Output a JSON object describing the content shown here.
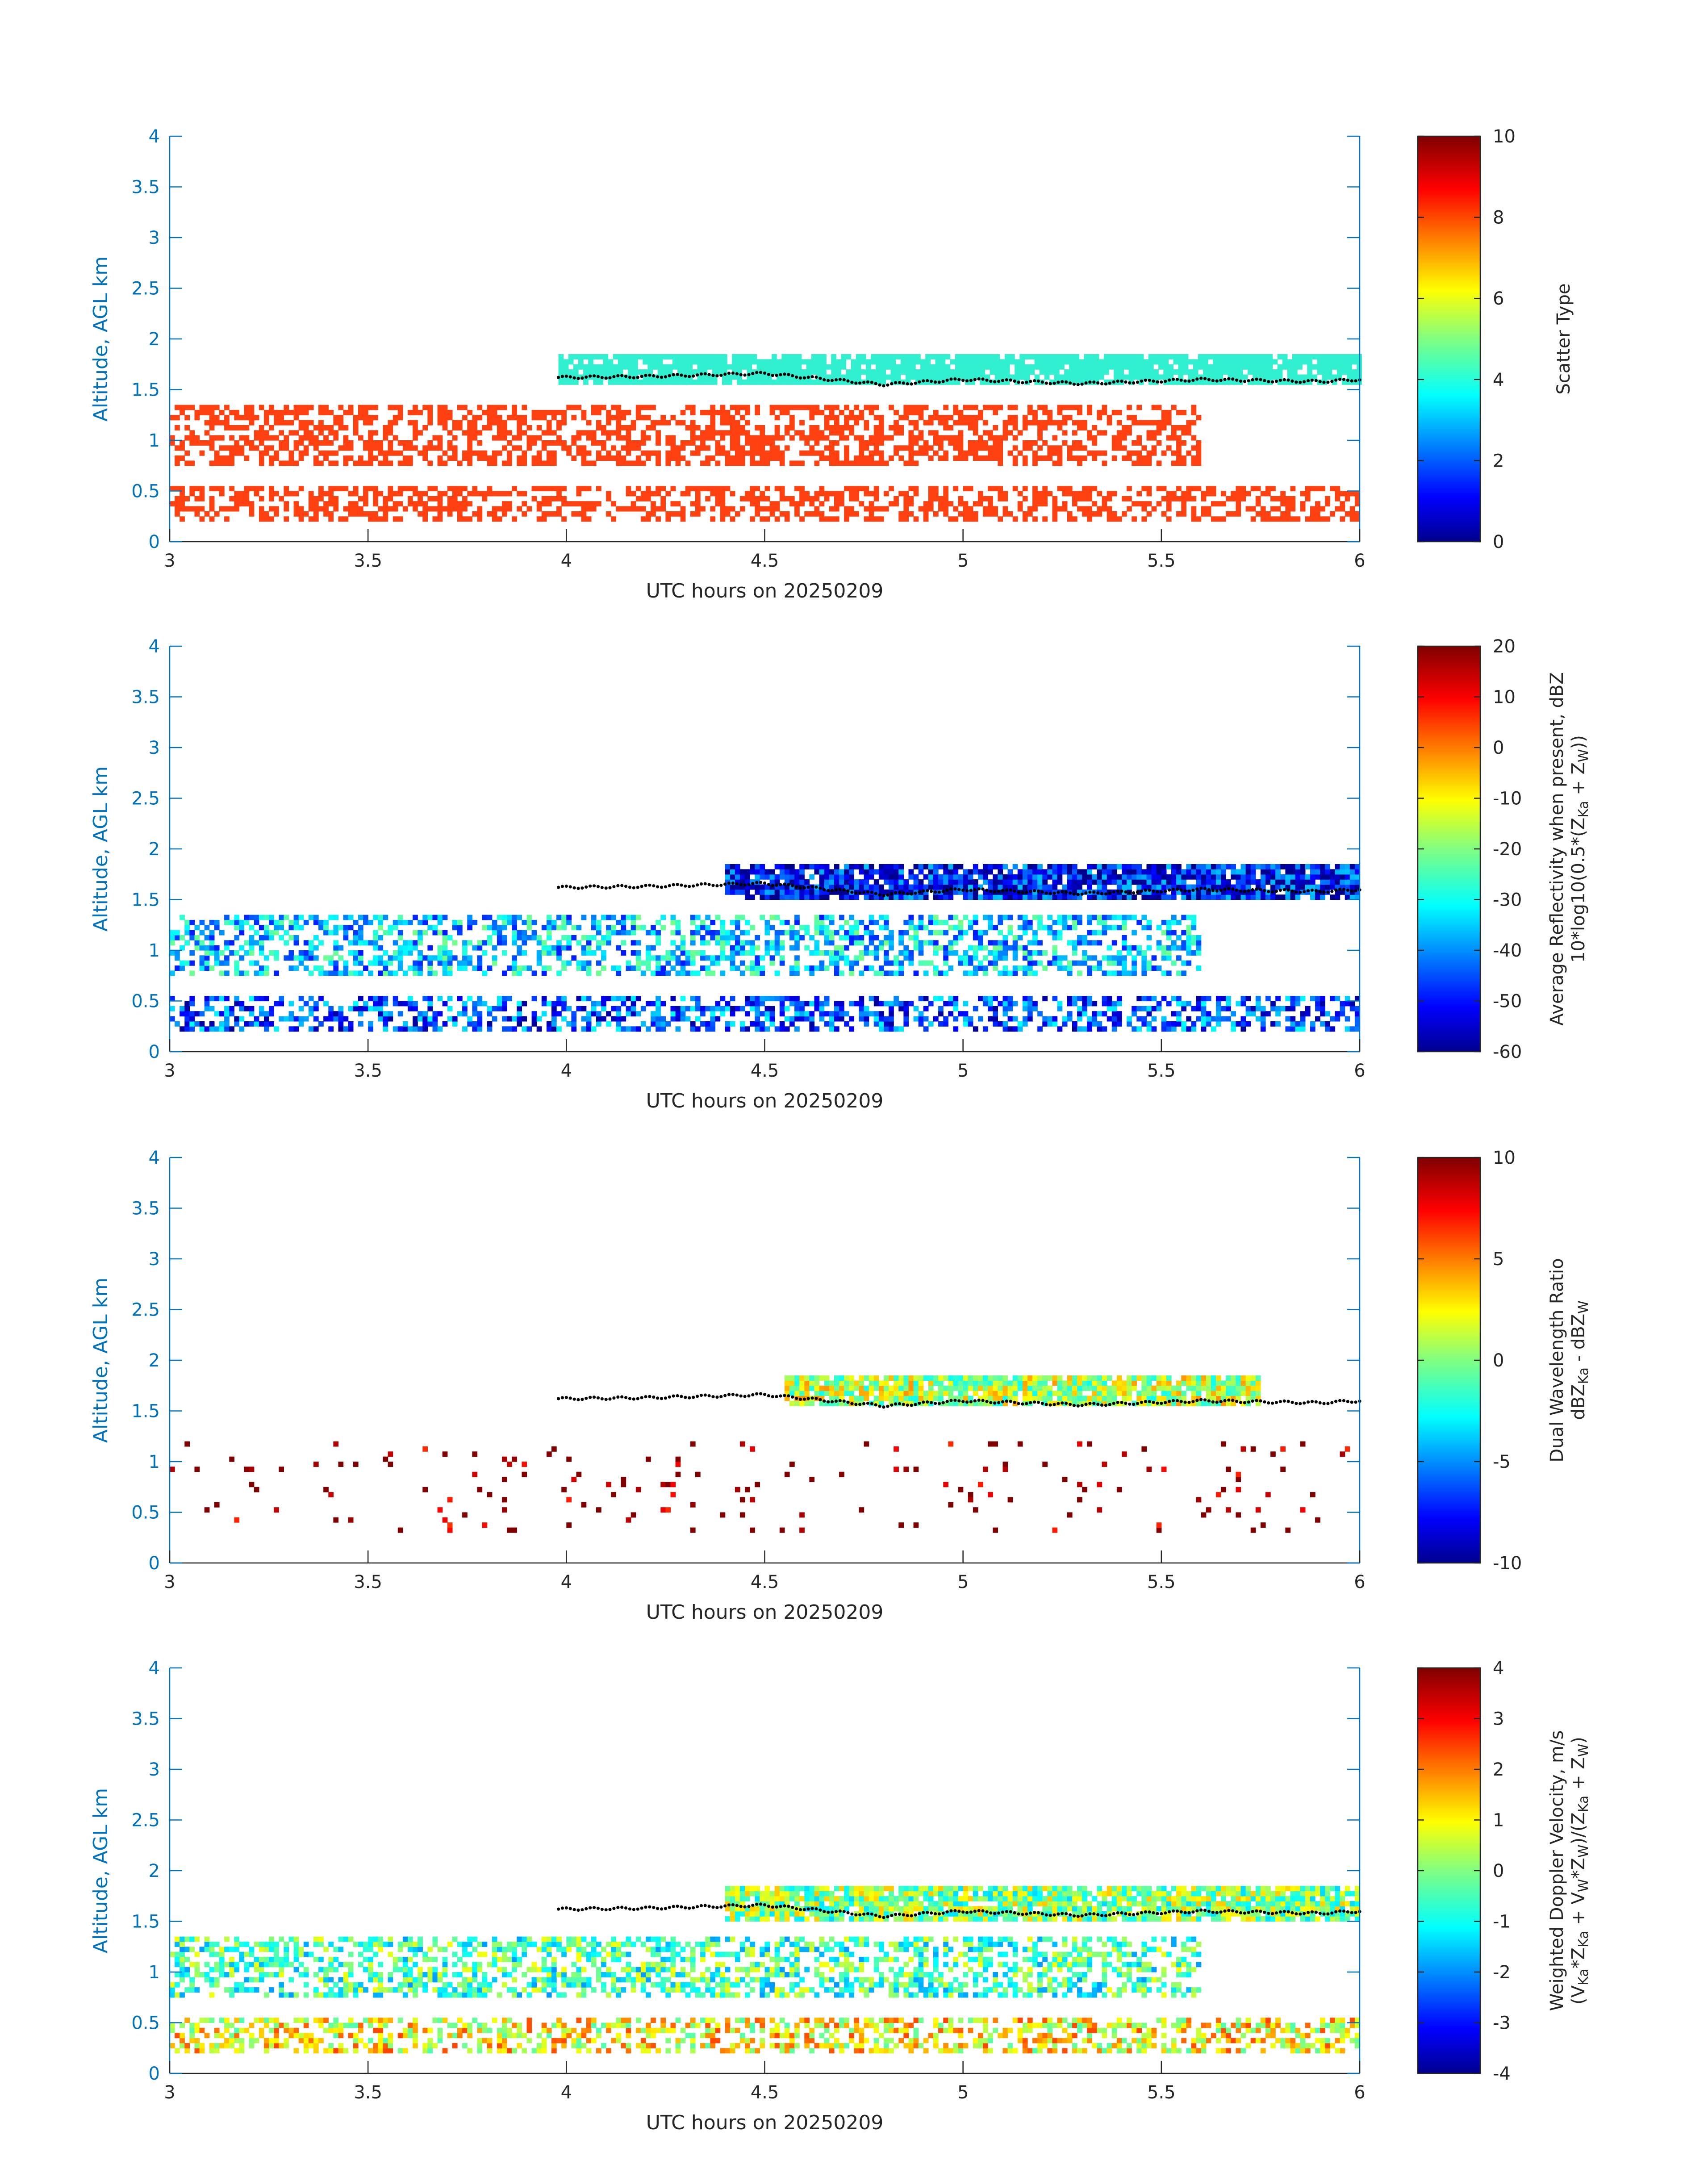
{
  "chart_data": [
    {
      "type": "heatmap",
      "panel": "scatter-type",
      "xlabel": "UTC hours on 20250209",
      "ylabel": "Altitude, AGL km",
      "xlim": [
        3,
        6
      ],
      "ylim": [
        0,
        4
      ],
      "xticks": [
        "3",
        "3.5",
        "4",
        "4.5",
        "5",
        "5.5",
        "6"
      ],
      "yticks": [
        "0",
        "0.5",
        "1",
        "1.5",
        "2",
        "2.5",
        "3",
        "3.5",
        "4"
      ],
      "colorbar": {
        "label": [
          "Scatter Type"
        ],
        "clim": [
          0,
          10
        ],
        "ticks": [
          "0",
          "2",
          "4",
          "6",
          "8",
          "10"
        ]
      },
      "layers": [
        {
          "value": 8,
          "color": "#ff4010",
          "description": "low layer echoes",
          "x": [
            3.0,
            6.0
          ],
          "y": [
            0.2,
            0.55
          ]
        },
        {
          "value": 8,
          "color": "#ff4010",
          "description": "mid-level echoes",
          "x": [
            3.0,
            5.6
          ],
          "y": [
            0.75,
            1.35
          ]
        },
        {
          "value": 4,
          "color": "#30f0d0",
          "description": "upper cloud layer",
          "x": [
            3.98,
            6.0
          ],
          "y": [
            1.55,
            1.85
          ]
        }
      ],
      "cloud_top_dots": {
        "x": [
          3.98,
          4.2,
          4.5,
          4.8,
          5.0,
          5.3,
          5.6,
          5.9,
          6.0
        ],
        "y": [
          1.62,
          1.63,
          1.66,
          1.55,
          1.6,
          1.56,
          1.6,
          1.58,
          1.6
        ]
      }
    },
    {
      "type": "heatmap",
      "panel": "reflectivity",
      "xlabel": "UTC hours on 20250209",
      "ylabel": "Altitude, AGL km",
      "xlim": [
        3,
        6
      ],
      "ylim": [
        0,
        4
      ],
      "xticks": [
        "3",
        "3.5",
        "4",
        "4.5",
        "5",
        "5.5",
        "6"
      ],
      "yticks": [
        "0",
        "0.5",
        "1",
        "1.5",
        "2",
        "2.5",
        "3",
        "3.5",
        "4"
      ],
      "colorbar": {
        "label": [
          "Average Reflectivity when present, dBZ",
          "10*log10(0.5*(Z",
          "Ka",
          " + Z",
          "W",
          "))"
        ],
        "clim": [
          -60,
          20
        ],
        "ticks": [
          "-60",
          "-50",
          "-40",
          "-30",
          "-20",
          "-10",
          "0",
          "10",
          "20"
        ]
      },
      "layers": [
        {
          "value": -45,
          "description": "low layer echoes",
          "x": [
            3.0,
            6.0
          ],
          "y": [
            0.2,
            0.55
          ]
        },
        {
          "value": -35,
          "description": "mid-level echoes",
          "x": [
            3.0,
            5.6
          ],
          "y": [
            0.75,
            1.35
          ]
        },
        {
          "value": -50,
          "description": "upper cloud layer",
          "x": [
            4.4,
            6.0
          ],
          "y": [
            1.5,
            1.85
          ]
        }
      ]
    },
    {
      "type": "heatmap",
      "panel": "dual-wavelength-ratio",
      "xlabel": "UTC hours on 20250209",
      "ylabel": "Altitude, AGL km",
      "xlim": [
        3,
        6
      ],
      "ylim": [
        0,
        4
      ],
      "xticks": [
        "3",
        "3.5",
        "4",
        "4.5",
        "5",
        "5.5",
        "6"
      ],
      "yticks": [
        "0",
        "0.5",
        "1",
        "1.5",
        "2",
        "2.5",
        "3",
        "3.5",
        "4"
      ],
      "colorbar": {
        "label": [
          "Dual Wavelength Ratio",
          "dBZ",
          "Ka",
          " - dBZ",
          "W"
        ],
        "clim": [
          -10,
          10
        ],
        "ticks": [
          "-10",
          "-5",
          "0",
          "5",
          "10"
        ]
      },
      "layers": [
        {
          "value": 1,
          "description": "upper cloud layer",
          "x": [
            4.55,
            5.75
          ],
          "y": [
            1.55,
            1.85
          ]
        },
        {
          "value": 10,
          "description": "sparse high-DWR points",
          "x": [
            3.0,
            6.0
          ],
          "y": [
            0.3,
            1.2
          ]
        }
      ]
    },
    {
      "type": "heatmap",
      "panel": "doppler-velocity",
      "xlabel": "UTC hours on 20250209",
      "ylabel": "Altitude, AGL km",
      "xlim": [
        3,
        6
      ],
      "ylim": [
        0,
        4
      ],
      "xticks": [
        "3",
        "3.5",
        "4",
        "4.5",
        "5",
        "5.5",
        "6"
      ],
      "yticks": [
        "0",
        "0.5",
        "1",
        "1.5",
        "2",
        "2.5",
        "3",
        "3.5",
        "4"
      ],
      "colorbar": {
        "label": [
          "Weighted Doppler Velocity, m/s",
          "(V",
          "Ka",
          "*Z",
          "Ka",
          " + V",
          "W",
          "*Z",
          "W",
          ")/(Z",
          "Ka",
          " + Z",
          "W",
          ")"
        ],
        "clim": [
          -4,
          4
        ],
        "ticks": [
          "-4",
          "-3",
          "-2",
          "-1",
          "0",
          "1",
          "2",
          "3",
          "4"
        ]
      },
      "layers": [
        {
          "value": 1,
          "description": "low layer echoes",
          "x": [
            3.0,
            6.0
          ],
          "y": [
            0.2,
            0.55
          ]
        },
        {
          "value": -0.5,
          "description": "mid-level echoes",
          "x": [
            3.0,
            5.6
          ],
          "y": [
            0.75,
            1.35
          ]
        },
        {
          "value": 0,
          "description": "upper cloud layer",
          "x": [
            4.4,
            6.0
          ],
          "y": [
            1.5,
            1.85
          ]
        }
      ]
    }
  ]
}
